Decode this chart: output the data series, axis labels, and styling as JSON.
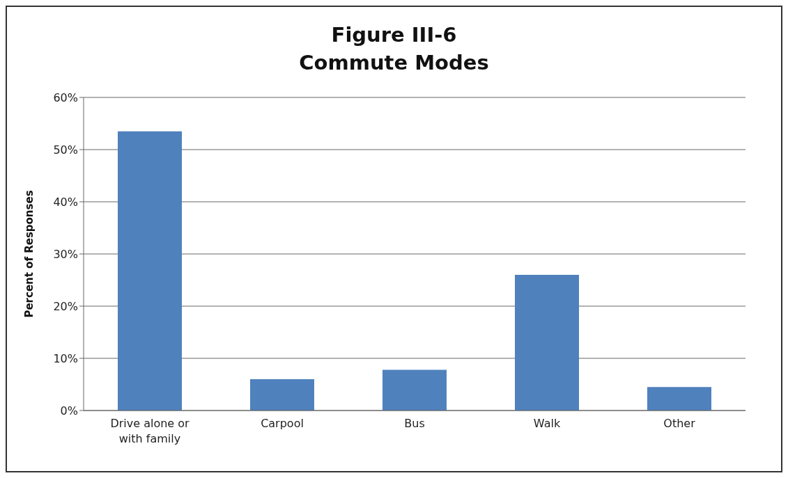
{
  "chart_data": {
    "type": "bar",
    "title": "Figure III-6\nCommute Modes",
    "ylabel": "Percent of Responses",
    "categories": [
      "Drive alone or with family",
      "Carpool",
      "Bus",
      "Walk",
      "Other"
    ],
    "values": [
      53.5,
      6,
      7.8,
      26,
      4.5
    ],
    "color": "#4f81bd",
    "ylim": [
      0,
      60
    ],
    "yticks": [
      {
        "value": 0,
        "label": "0%"
      },
      {
        "value": 10,
        "label": "10%"
      },
      {
        "value": 20,
        "label": "20%"
      },
      {
        "value": 30,
        "label": "30%"
      },
      {
        "value": 40,
        "label": "40%"
      },
      {
        "value": 50,
        "label": "50%"
      },
      {
        "value": 60,
        "label": "60%"
      }
    ],
    "grid": "y",
    "legend": false
  }
}
